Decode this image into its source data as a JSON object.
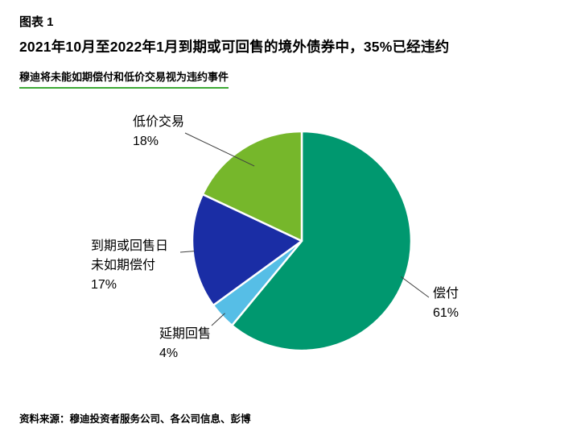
{
  "header": {
    "exhibit_label": "图表 1",
    "title": "2021年10月至2022年1月到期或可回售的境外债券中，35%已经违约",
    "subtitle": "穆迪将未能如期偿付和低价交易视为违约事件"
  },
  "footer": {
    "source": "资料来源：穆迪投资者服务公司、各公司信息、彭博"
  },
  "accent_colors": {
    "subtitle_rule_green": "#3DA935",
    "leader_line": "#404040"
  },
  "chart_data": {
    "type": "pie",
    "title": "2021年10月至2022年1月到期或可回售的境外债券中，35%已经违约",
    "subtitle": "穆迪将未能如期偿付和低价交易视为违约事件",
    "unit": "%",
    "direction": "clockwise",
    "start_angle_deg": 0,
    "legend_position": "callout-labels-with-leader-lines",
    "slices": [
      {
        "label": "偿付",
        "value": 61,
        "pct_label": "61%",
        "color": "#00986F"
      },
      {
        "label": "延期回售",
        "value": 4,
        "pct_label": "4%",
        "color": "#56BEE6"
      },
      {
        "label": "到期或回售日未如期偿付",
        "value": 17,
        "pct_label": "17%",
        "color": "#1A2DA5"
      },
      {
        "label": "低价交易",
        "value": 18,
        "pct_label": "18%",
        "color": "#76B72B"
      }
    ]
  }
}
